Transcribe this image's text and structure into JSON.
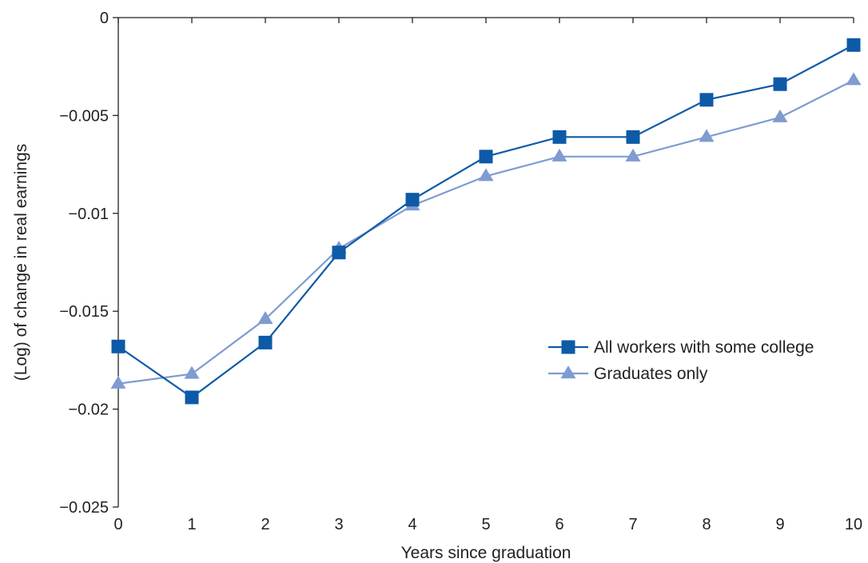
{
  "chart_data": {
    "type": "line",
    "title": "",
    "xlabel": "Years since graduation",
    "ylabel": "(Log) of change in real earnings",
    "x": [
      0,
      1,
      2,
      3,
      4,
      5,
      6,
      7,
      8,
      9,
      10
    ],
    "xlim": [
      0,
      10
    ],
    "ylim": [
      -0.025,
      0
    ],
    "x_tick_labels": [
      "0",
      "1",
      "2",
      "3",
      "4",
      "5",
      "6",
      "7",
      "8",
      "9",
      "10"
    ],
    "y_ticks": [
      0,
      -0.005,
      -0.01,
      -0.015,
      -0.02,
      -0.025
    ],
    "y_tick_labels": [
      "0",
      "−0.005",
      "−0.01",
      "−0.015",
      "−0.02",
      "−0.025"
    ],
    "grid": false,
    "legend_position": "right-middle",
    "series": [
      {
        "name": "All workers with some college",
        "marker": "square",
        "color": "#0d5aa7",
        "values": [
          -0.0168,
          -0.0194,
          -0.0166,
          -0.012,
          -0.0093,
          -0.0071,
          -0.0061,
          -0.0061,
          -0.0042,
          -0.0034,
          -0.0014
        ]
      },
      {
        "name": "Graduates only",
        "marker": "triangle",
        "color": "#7f9bd0",
        "values": [
          -0.0187,
          -0.0182,
          -0.0154,
          -0.0118,
          -0.0096,
          -0.0081,
          -0.0071,
          -0.0071,
          -0.0061,
          -0.0051,
          -0.0032
        ]
      }
    ]
  }
}
